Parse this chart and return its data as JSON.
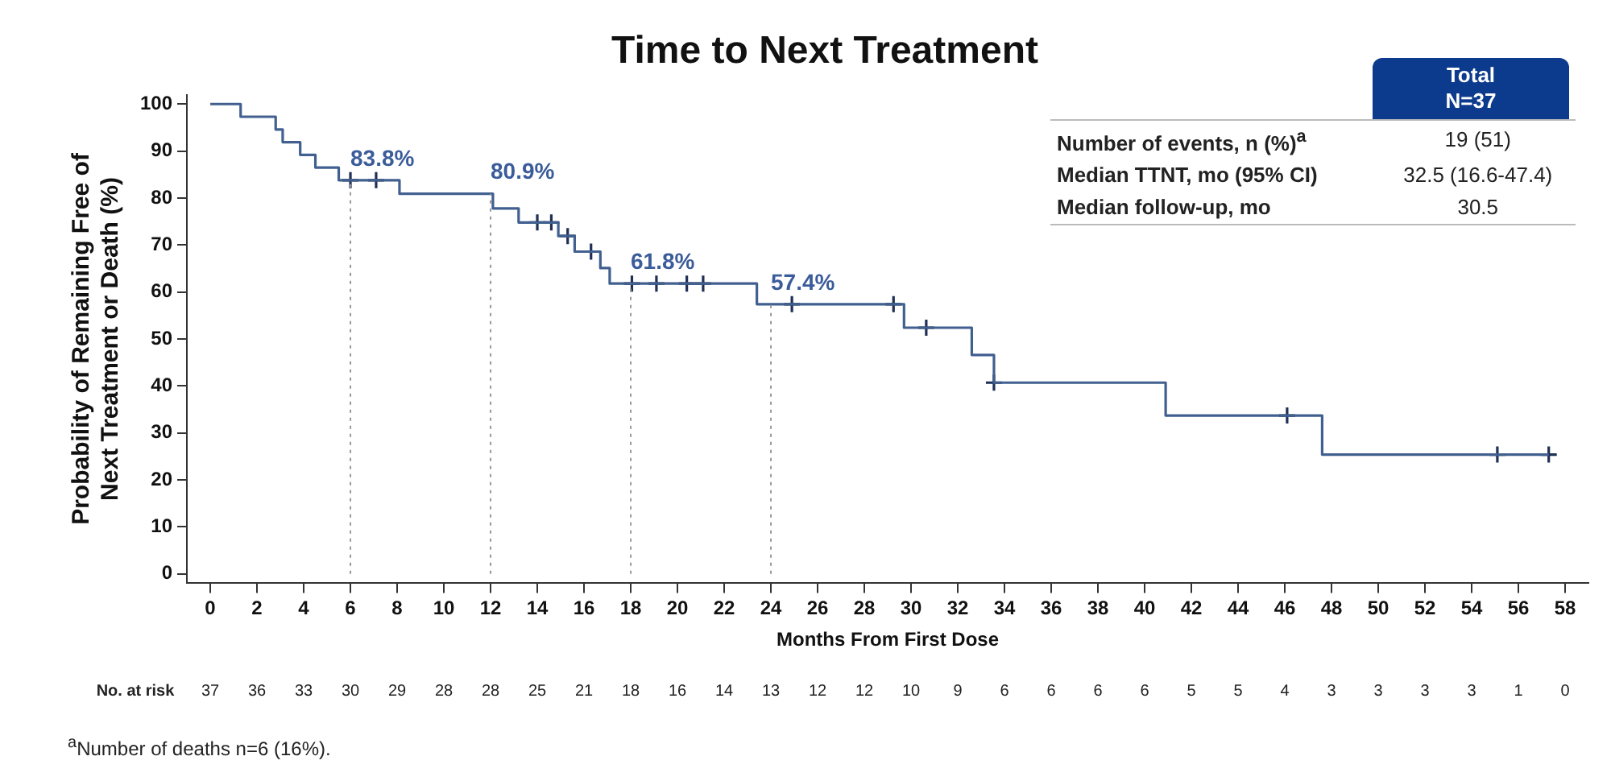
{
  "chart_data": {
    "type": "step",
    "title": "Time to Next Treatment",
    "xlabel": "Months From First Dose",
    "ylabel": "Probability of Remaining Free of\nNext Treatment or Death (%)",
    "xlim": [
      -1,
      59
    ],
    "xticks": [
      0,
      2,
      4,
      6,
      8,
      10,
      12,
      14,
      16,
      18,
      20,
      22,
      24,
      26,
      28,
      30,
      32,
      34,
      36,
      38,
      40,
      42,
      44,
      46,
      48,
      50,
      52,
      54,
      56,
      58
    ],
    "ylim": [
      -2,
      102
    ],
    "yticks": [
      0,
      10,
      20,
      30,
      40,
      50,
      60,
      70,
      80,
      90,
      100
    ],
    "grid": false,
    "legend": false,
    "series": [
      {
        "color": "#41608f",
        "x": [
          0,
          1.3,
          2.8,
          3.1,
          3.85,
          4.5,
          5.5,
          8.1,
          12.1,
          13.2,
          14.9,
          15.6,
          16.7,
          17.1,
          23.4,
          29.7,
          32.6,
          33.55,
          40.9,
          47.6,
          57.3
        ],
        "values": [
          100,
          97.3,
          94.6,
          91.9,
          89.2,
          86.5,
          83.8,
          80.9,
          77.8,
          74.8,
          71.9,
          68.6,
          65.1,
          61.8,
          57.4,
          52.4,
          46.6,
          40.7,
          33.7,
          25.4,
          25.4
        ]
      },
      {
        "type": "scatter",
        "marker": "cross",
        "color": "#1f2f55",
        "x": [
          6,
          7.1,
          14,
          14.6,
          15.3,
          16.3,
          18.05,
          19.1,
          20.4,
          21.1,
          24.9,
          29.25,
          30.65,
          33.55,
          46.1,
          55.1,
          57.3
        ],
        "values": [
          83.8,
          83.8,
          74.8,
          74.8,
          71.9,
          68.6,
          61.8,
          61.8,
          61.8,
          61.8,
          57.4,
          57.4,
          52.4,
          40.7,
          33.7,
          25.4,
          25.4
        ]
      }
    ],
    "ref_lines": [
      {
        "axis": "x",
        "value": 6,
        "line_style": "dotted",
        "color": "#999999"
      },
      {
        "axis": "x",
        "value": 12,
        "line_style": "dotted",
        "color": "#999999"
      },
      {
        "axis": "x",
        "value": 18,
        "line_style": "dotted",
        "color": "#999999"
      },
      {
        "axis": "x",
        "value": 24,
        "line_style": "dotted",
        "color": "#999999"
      }
    ],
    "annotations": [
      {
        "text": "83.8%",
        "x": 6,
        "y": 83.8
      },
      {
        "text": "80.9%",
        "x": 12,
        "y": 80.9
      },
      {
        "text": "61.8%",
        "x": 18,
        "y": 61.8
      },
      {
        "text": "57.4%",
        "x": 24,
        "y": 57.4
      },
      "Total",
      "N=37",
      "Number of events, n (%)$^{a}$",
      "19 (51)",
      "Median TTNT, mo (95% CI)",
      "32.5 (16.6-47.4)",
      "Median follow-up, mo",
      "30.5",
      "No. at risk",
      "37",
      "36",
      "33",
      "30",
      "29",
      "28",
      "28",
      "25",
      "21",
      "18",
      "16",
      "14",
      "13",
      "12",
      "12",
      "10",
      "9",
      "6",
      "6",
      "6",
      "6",
      "5",
      "5",
      "4",
      "3",
      "3",
      "3",
      "3",
      "1",
      "0",
      "$^{a}$Number of deaths n=6 (16%)."
    ]
  }
}
